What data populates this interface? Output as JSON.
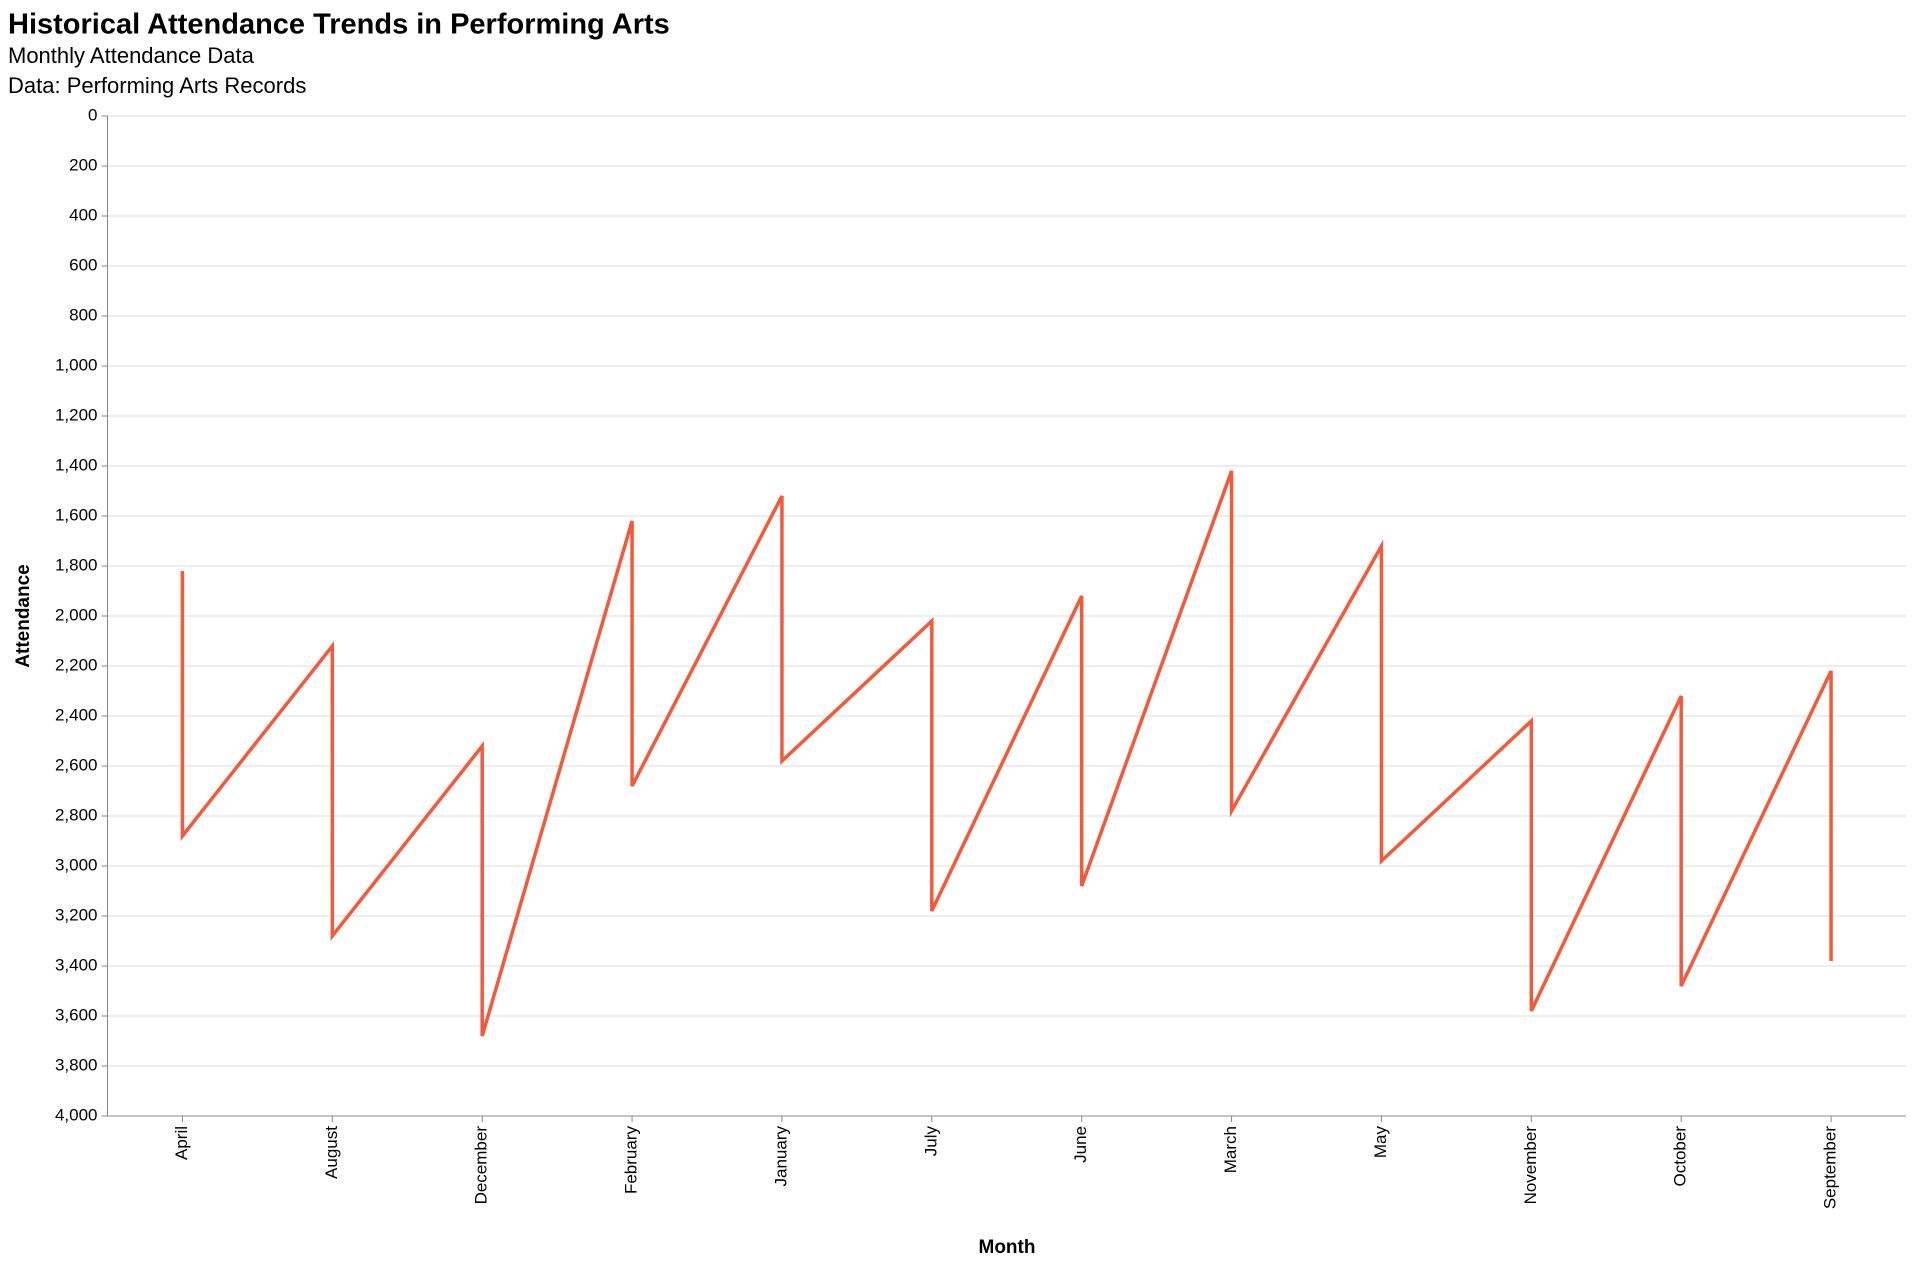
{
  "chart_data": {
    "type": "line",
    "title": "Historical Attendance Trends in Performing Arts",
    "subtitle": [
      "Monthly Attendance Data",
      "Data: Performing Arts Records"
    ],
    "x_label": "Month",
    "y_label": "Attendance",
    "x": [
      "April",
      "April",
      "August",
      "August",
      "December",
      "December",
      "February",
      "February",
      "January",
      "January",
      "July",
      "July",
      "June",
      "June",
      "March",
      "March",
      "May",
      "May",
      "November",
      "November",
      "October",
      "October",
      "September",
      "September"
    ],
    "values": [
      1820,
      2880,
      2120,
      3280,
      2520,
      3680,
      1620,
      2680,
      1520,
      2580,
      2020,
      3180,
      1920,
      3080,
      1420,
      2780,
      1720,
      2980,
      2420,
      3580,
      2320,
      3480,
      2220,
      3380
    ],
    "color": "#f4593a",
    "ylim": [
      0,
      4000
    ],
    "y_reversed": true,
    "yticks": [
      0,
      200,
      400,
      600,
      800,
      {
        "value": 1000,
        "label": "1,000"
      },
      {
        "value": 1200,
        "label": "1,200"
      },
      {
        "value": 1400,
        "label": "1,400"
      },
      {
        "value": 1600,
        "label": "1,600"
      },
      {
        "value": 1800,
        "label": "1,800"
      },
      {
        "value": 2000,
        "label": "2,000"
      },
      {
        "value": 2200,
        "label": "2,200"
      },
      {
        "value": 2400,
        "label": "2,400"
      },
      {
        "value": 2600,
        "label": "2,600"
      },
      {
        "value": 2800,
        "label": "2,800"
      },
      {
        "value": 3000,
        "label": "3,000"
      },
      {
        "value": 3200,
        "label": "3,200"
      },
      {
        "value": 3400,
        "label": "3,400"
      },
      {
        "value": 3600,
        "label": "3,600"
      },
      {
        "value": 3800,
        "label": "3,800"
      },
      {
        "value": 4000,
        "label": "4,000"
      }
    ],
    "grid": true
  }
}
